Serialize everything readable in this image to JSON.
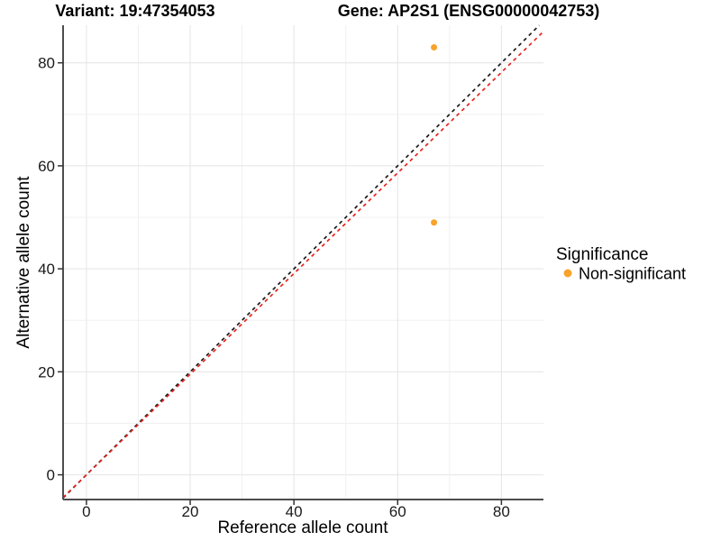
{
  "chart_data": {
    "type": "scatter",
    "titles": {
      "left": "Variant: 19:47354053",
      "right": "Gene: AP2S1 (ENSG00000042753)"
    },
    "xlabel": "Reference allele count",
    "ylabel": "Alternative allele count",
    "xlim": [
      -4.5,
      88.1
    ],
    "ylim": [
      -4.8,
      87.3
    ],
    "x_ticks": [
      0,
      20,
      40,
      60,
      80
    ],
    "y_ticks": [
      0,
      20,
      40,
      60,
      80
    ],
    "grid_step": 10,
    "grid_max": 80,
    "grid_on": true,
    "points": [
      {
        "x": 67,
        "y": 83,
        "series": "Non-significant"
      },
      {
        "x": 67,
        "y": 49,
        "series": "Non-significant"
      }
    ],
    "lines": [
      {
        "name": "identity-line",
        "slope": 1.0,
        "intercept": 0,
        "color": "#1a1a1a",
        "dash": "4 4"
      },
      {
        "name": "expected-ratio-line",
        "slope": 0.977,
        "intercept": 0,
        "color": "#e8231e",
        "dash": "4 4"
      }
    ],
    "legend": {
      "title": "Significance",
      "position": "right",
      "items": [
        {
          "label": "Non-significant",
          "color": "#f9a32c"
        }
      ]
    },
    "colors": {
      "point": "#f9a32c",
      "grid_major": "#e4e4e4",
      "grid_minor": "#f0f0f0",
      "axis_line": "#4d4d4d",
      "tick_mark": "#333333"
    }
  }
}
